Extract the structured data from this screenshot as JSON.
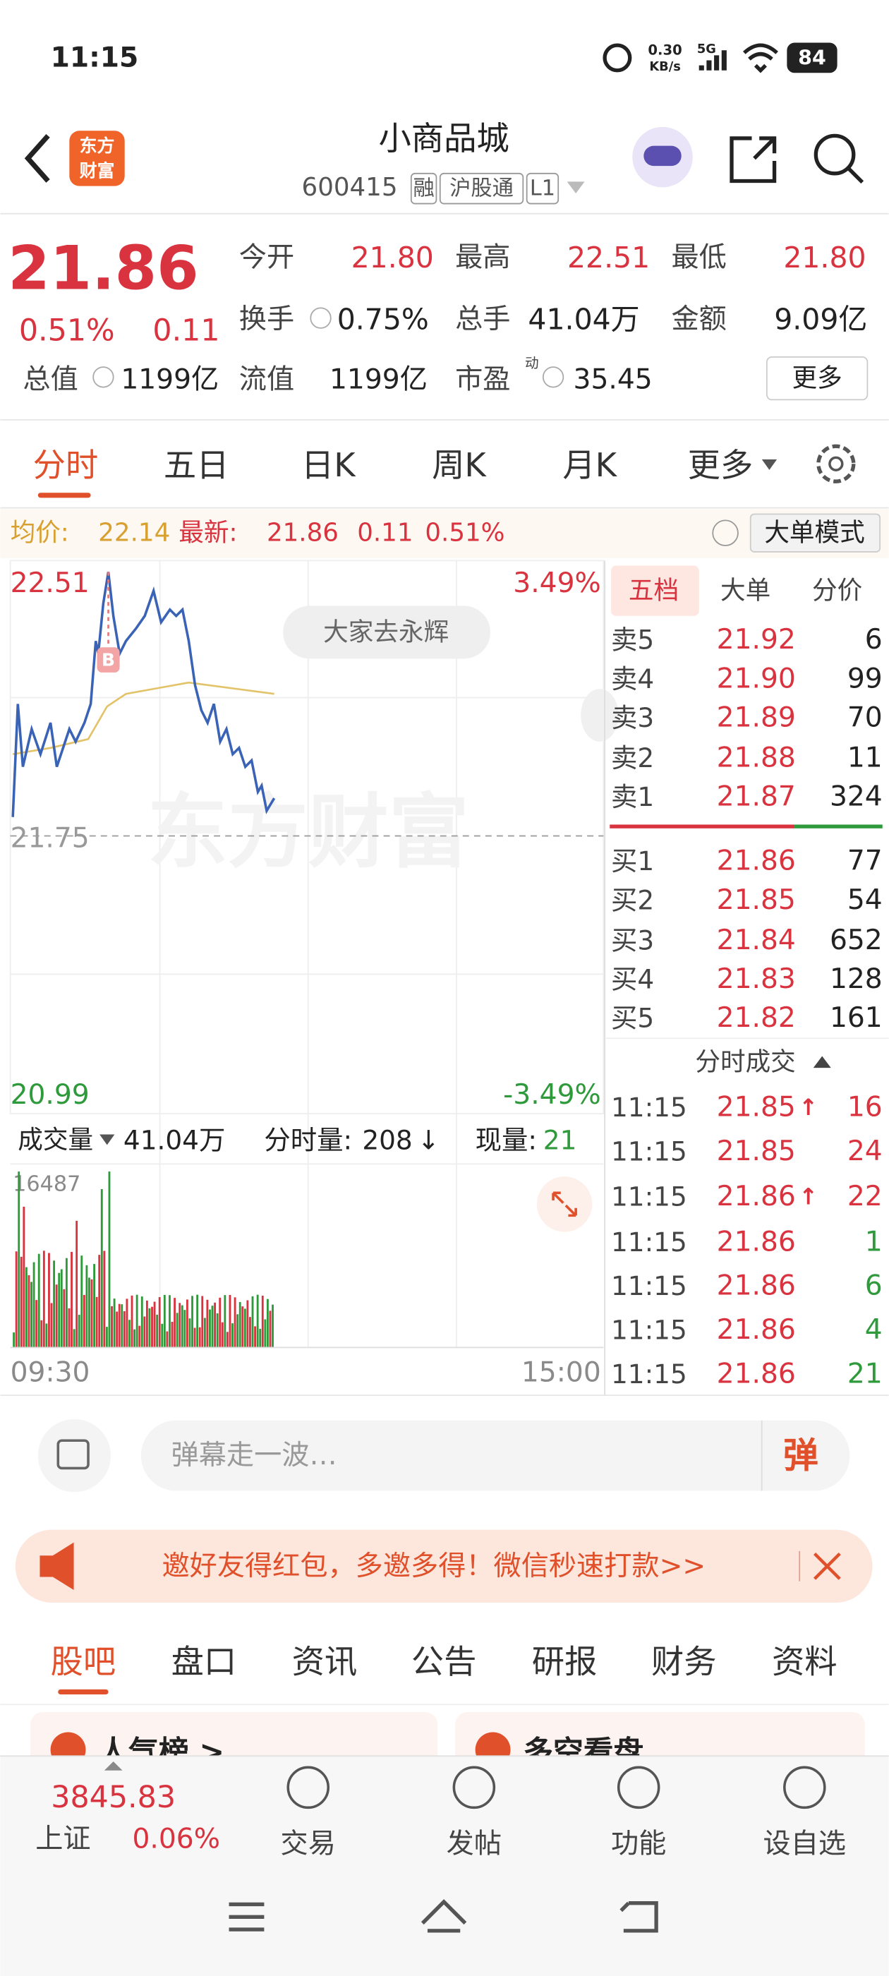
{
  "status_bar": {
    "time": "11:15",
    "speed": "0.30",
    "speed_unit": "KB/s",
    "network": "5G",
    "battery": "84"
  },
  "header": {
    "logo": [
      "东方",
      "财富"
    ],
    "title": "小商品城",
    "code": "600415",
    "tags": [
      "融",
      "沪股通",
      "L1"
    ]
  },
  "quote": {
    "price": "21.86",
    "change_pct": "0.51%",
    "change": "0.11",
    "fields": [
      {
        "label": "今开",
        "value": "21.80"
      },
      {
        "label": "最高",
        "value": "22.51"
      },
      {
        "label": "最低",
        "value": "21.80"
      },
      {
        "label": "换手",
        "value": "0.75%"
      },
      {
        "label": "总手",
        "value": "41.04万"
      },
      {
        "label": "金额",
        "value": "9.09亿"
      },
      {
        "label": "总值",
        "value": "1199亿"
      },
      {
        "label": "流值",
        "value": "1199亿"
      },
      {
        "label": "市盈",
        "value": "35.45"
      }
    ],
    "pe_superscript": "动",
    "more": "更多"
  },
  "tabs": [
    "分时",
    "五日",
    "日K",
    "周K",
    "月K",
    "更多"
  ],
  "avg_bar": {
    "avg_label": "均价:",
    "avg": "22.14",
    "latest_label": "最新:",
    "latest": "21.86",
    "change": "0.11",
    "change_pct": "0.51%",
    "mode": "大单模式"
  },
  "chart": {
    "high": "22.51",
    "low": "20.99",
    "base": "21.75",
    "up_pct": "3.49%",
    "down_pct": "-3.49%",
    "bullet": "大家去永辉",
    "watermark": "东方财富",
    "marker": "B",
    "volume_label": "成交量",
    "volume_total": "41.04万",
    "minute_volume_label": "分时量:",
    "minute_volume": "208",
    "arrow": "↓",
    "current_volume_label": "现量:",
    "current_volume": "21",
    "volume_max": "16487",
    "start_time": "09:30",
    "end_time": "15:00"
  },
  "order_book": {
    "tabs": [
      "五档",
      "大单",
      "分价"
    ],
    "asks": [
      {
        "label": "卖5",
        "price": "21.92",
        "volume": "6"
      },
      {
        "label": "卖4",
        "price": "21.90",
        "volume": "99"
      },
      {
        "label": "卖3",
        "price": "21.89",
        "volume": "70"
      },
      {
        "label": "卖2",
        "price": "21.88",
        "volume": "11"
      },
      {
        "label": "卖1",
        "price": "21.87",
        "volume": "324"
      }
    ],
    "bids": [
      {
        "label": "买1",
        "price": "21.86",
        "volume": "77"
      },
      {
        "label": "买2",
        "price": "21.85",
        "volume": "54"
      },
      {
        "label": "买3",
        "price": "21.84",
        "volume": "652"
      },
      {
        "label": "买4",
        "price": "21.83",
        "volume": "128"
      },
      {
        "label": "买5",
        "price": "21.82",
        "volume": "161"
      }
    ],
    "trades_title": "分时成交",
    "trades": [
      {
        "time": "11:15",
        "price": "21.85",
        "arrow": "↑",
        "volume": "16",
        "color": "#d9333f"
      },
      {
        "time": "11:15",
        "price": "21.85",
        "volume": "24",
        "color": "#d9333f"
      },
      {
        "time": "11:15",
        "price": "21.86",
        "arrow": "↑",
        "volume": "22",
        "color": "#d9333f"
      },
      {
        "time": "11:15",
        "price": "21.86",
        "volume": "1",
        "color": "#2f9a3c"
      },
      {
        "time": "11:15",
        "price": "21.86",
        "volume": "6",
        "color": "#2f9a3c"
      },
      {
        "time": "11:15",
        "price": "21.86",
        "volume": "4",
        "color": "#2f9a3c"
      },
      {
        "time": "11:15",
        "price": "21.86",
        "volume": "21",
        "color": "#2f9a3c"
      }
    ]
  },
  "comment": {
    "placeholder": "弹幕走一波…",
    "button": "弹"
  },
  "banner": "邀好友得红包，多邀多得！微信秒速打款>>",
  "section_tabs": [
    "股吧",
    "盘口",
    "资讯",
    "公告",
    "研报",
    "财务",
    "资料"
  ],
  "cards": [
    "人气榜 >",
    "多空看盘"
  ],
  "bottom_bar": {
    "index_value": "3845.83",
    "index_name": "上证",
    "index_change": "0.06%",
    "items": [
      "交易",
      "发帖",
      "功能",
      "设自选"
    ]
  }
}
